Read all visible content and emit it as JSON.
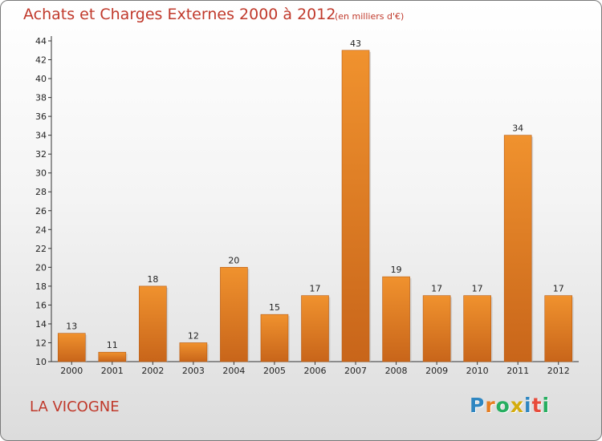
{
  "header": {
    "title": "Achats et Charges Externes 2000 à 2012",
    "subtitle": "(en milliers d'€)"
  },
  "footer": {
    "place_name": "LA VICOGNE",
    "logo_text": "Proxiti",
    "logo_colors": [
      "#2e86c1",
      "#e67e22",
      "#27ae60",
      "#d4ac0d",
      "#2e86c1",
      "#e74c3c",
      "#27ae60"
    ]
  },
  "chart_data": {
    "type": "bar",
    "categories": [
      "2000",
      "2001",
      "2002",
      "2003",
      "2004",
      "2005",
      "2006",
      "2007",
      "2008",
      "2009",
      "2010",
      "2011",
      "2012"
    ],
    "values": [
      13,
      11,
      18,
      12,
      20,
      15,
      17,
      43,
      19,
      17,
      17,
      34,
      17
    ],
    "data_labels": [
      "13",
      "11",
      "18",
      "12",
      "20",
      "15",
      "17",
      "43",
      "19",
      "17",
      "17",
      "34",
      "17"
    ],
    "y_ticks": [
      "10",
      "12",
      "14",
      "16",
      "18",
      "20",
      "22",
      "24",
      "26",
      "28",
      "30",
      "32",
      "34",
      "36",
      "38",
      "40",
      "42",
      "44"
    ],
    "ylim": [
      10,
      44
    ],
    "xlabel": "",
    "ylabel": "",
    "grid": false,
    "bar_color": "#f0922e",
    "bar_color_dark": "#c8651a"
  }
}
